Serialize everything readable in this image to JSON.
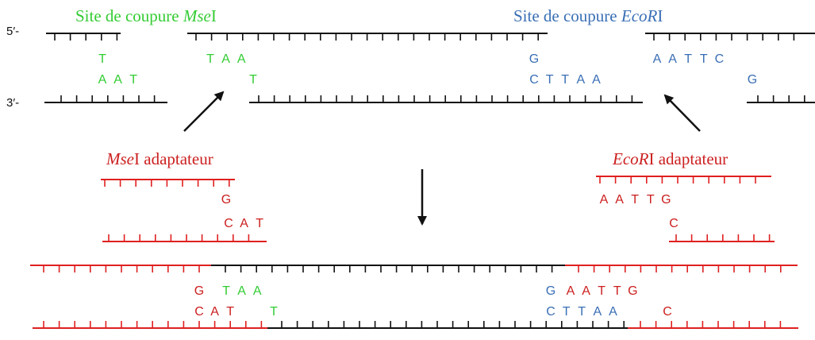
{
  "colors": {
    "black": "#111111",
    "green": "#33cc33",
    "blue": "#3a6fb5",
    "red": "#cc1f1f",
    "strand_red": "#e02020"
  },
  "strand_labels": {
    "five_prime": "5′-",
    "three_prime": "3′-"
  },
  "site_labels": {
    "mse": {
      "prefix": "Site de coupure ",
      "enzyme_italic": "Mse",
      "suffix": "I"
    },
    "eco": {
      "prefix": "Site de coupure ",
      "enzyme_italic": "EcoR",
      "suffix": "I"
    }
  },
  "adapter_labels": {
    "mse": {
      "enzyme_italic": "Mse",
      "suffix": "I adaptateur"
    },
    "eco": {
      "enzyme_italic": "EcoR",
      "suffix": "I adaptateur"
    }
  },
  "bases": {
    "top_left": [
      "T"
    ],
    "bottom_left": [
      "A",
      "A",
      "T"
    ],
    "mse_top": [
      "T",
      "A",
      "A"
    ],
    "mse_bottom": [
      "T"
    ],
    "eco_mid_top": [
      "G"
    ],
    "eco_mid_bottom": [
      "C",
      "T",
      "T",
      "A",
      "A"
    ],
    "eco_right_top": [
      "A",
      "A",
      "T",
      "T",
      "C"
    ],
    "eco_right_bottom": [
      "G"
    ],
    "adapter_mse_top": [
      "G"
    ],
    "adapter_mse_bottom": [
      "C",
      "A",
      "T"
    ],
    "adapter_eco_top": [
      "A",
      "A",
      "T",
      "T",
      "G"
    ],
    "adapter_eco_bottom": [
      "C"
    ],
    "result_top_red_left": [
      "G"
    ],
    "result_top_green": [
      "T",
      "A",
      "A"
    ],
    "result_top_blue": [
      "G"
    ],
    "result_top_red_right": [
      "A",
      "A",
      "T",
      "T",
      "G"
    ],
    "result_bottom_red_left": [
      "C",
      "A",
      "T"
    ],
    "result_bottom_green": [
      "T"
    ],
    "result_bottom_blue": [
      "C",
      "T",
      "T",
      "A",
      "A"
    ],
    "result_bottom_red_right": [
      "C"
    ]
  },
  "arrows": [
    "arrow-to-mse-site",
    "arrow-to-eco-site",
    "arrow-down-ligation"
  ]
}
